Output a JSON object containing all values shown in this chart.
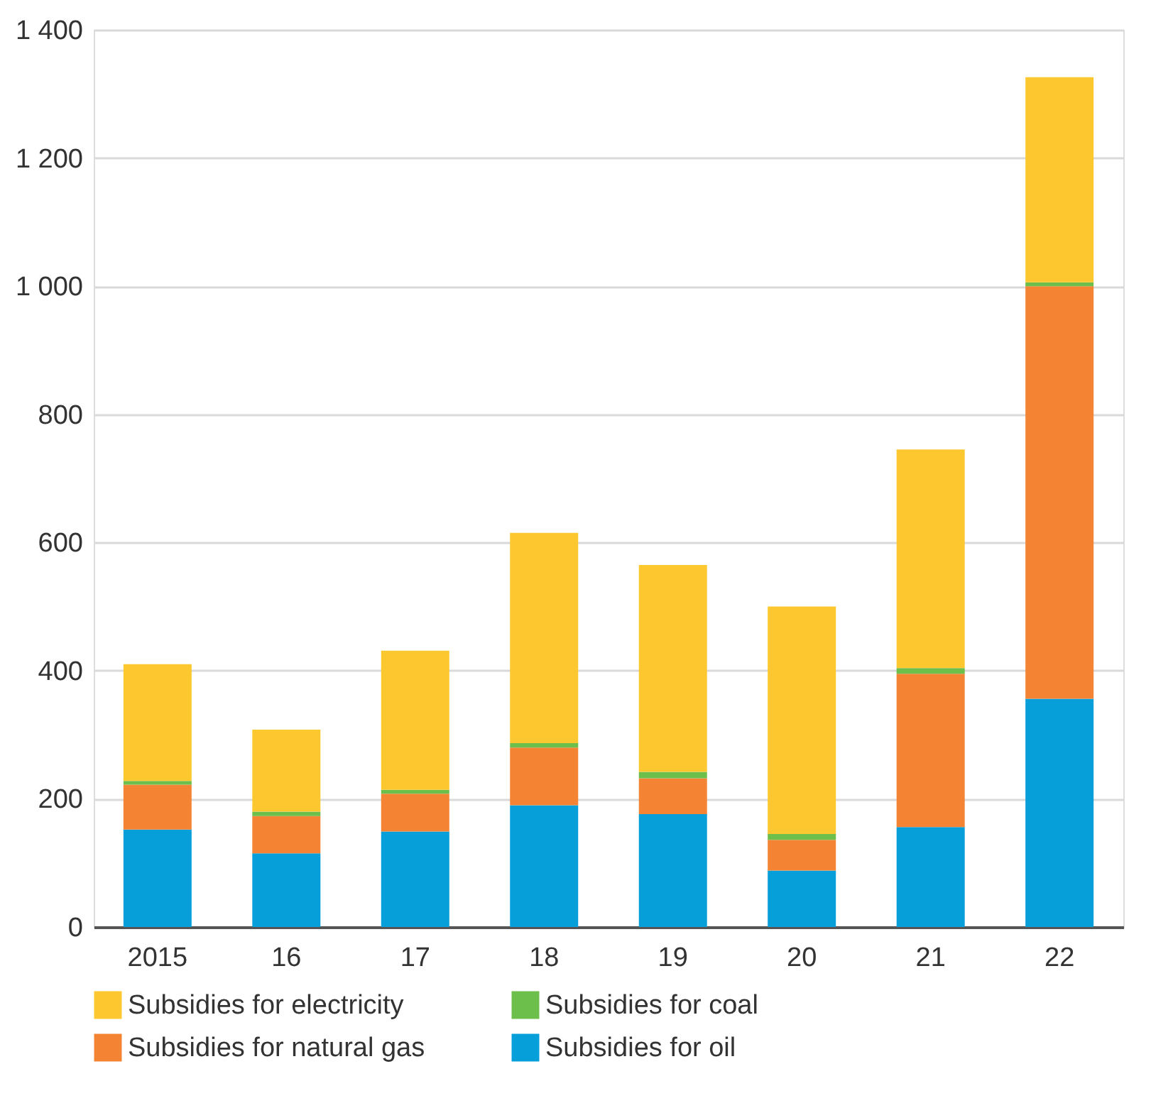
{
  "chart_data": {
    "type": "bar",
    "stacked": true,
    "categories": [
      "2015",
      "16",
      "17",
      "18",
      "19",
      "20",
      "21",
      "22"
    ],
    "series": [
      {
        "name": "Subsidies for oil",
        "color": "#069fda",
        "values": [
          152,
          115,
          149,
          190,
          176,
          88,
          156,
          356
        ]
      },
      {
        "name": "Subsidies for natural gas",
        "color": "#f48434",
        "values": [
          70,
          58,
          59,
          90,
          56,
          48,
          239,
          644
        ]
      },
      {
        "name": "Subsidies for coal",
        "color": "#6dbf4b",
        "values": [
          6,
          7,
          6,
          7,
          10,
          9,
          9,
          6
        ]
      },
      {
        "name": "Subsidies for electricity",
        "color": "#fdc82f",
        "values": [
          182,
          128,
          217,
          328,
          323,
          355,
          341,
          320
        ]
      }
    ],
    "ylim": [
      0,
      1400
    ],
    "yticks": [
      0,
      200,
      400,
      600,
      800,
      {
        "value": 1000,
        "label": "1 000"
      },
      {
        "value": 1200,
        "label": "1 200"
      },
      {
        "value": 1400,
        "label": "1 400"
      }
    ],
    "grid": "y",
    "legend": "bottom"
  }
}
